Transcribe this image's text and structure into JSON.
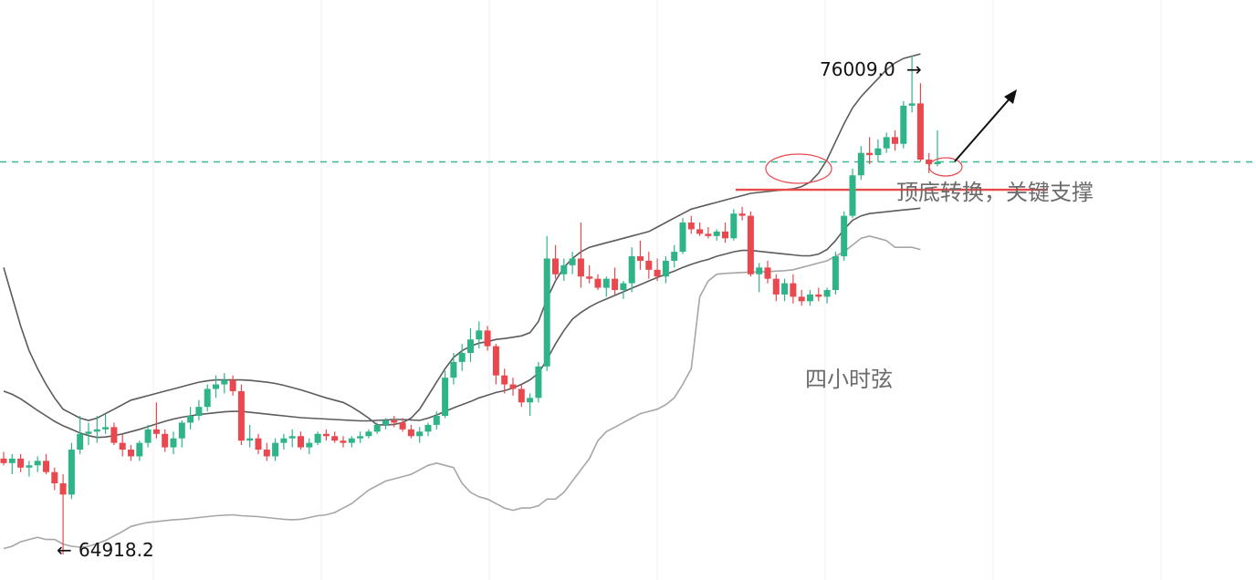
{
  "chart_data": {
    "type": "candlestick",
    "series": [
      {
        "name": "price",
        "ohlc": [
          [
            67050,
            67200,
            66900,
            66950
          ],
          [
            66950,
            67150,
            66700,
            67050
          ],
          [
            67050,
            67150,
            66750,
            66850
          ],
          [
            66850,
            67000,
            66650,
            66900
          ],
          [
            66900,
            67100,
            66750,
            67000
          ],
          [
            67000,
            67150,
            66700,
            66750
          ],
          [
            66750,
            66850,
            66350,
            66500
          ],
          [
            66500,
            66700,
            64918.2,
            66250
          ],
          [
            66250,
            67400,
            66150,
            67250
          ],
          [
            67250,
            68000,
            67150,
            67600
          ],
          [
            67600,
            67850,
            67350,
            67650
          ],
          [
            67650,
            68000,
            67400,
            67700
          ],
          [
            67700,
            68050,
            67600,
            67750
          ],
          [
            67750,
            67850,
            67350,
            67400
          ],
          [
            67400,
            67600,
            67100,
            67250
          ],
          [
            67250,
            67350,
            67000,
            67100
          ],
          [
            67100,
            67450,
            67000,
            67400
          ],
          [
            67400,
            67800,
            67300,
            67700
          ],
          [
            67700,
            68300,
            67500,
            67600
          ],
          [
            67600,
            67700,
            67200,
            67300
          ],
          [
            67300,
            67650,
            67150,
            67500
          ],
          [
            67500,
            67900,
            67300,
            67850
          ],
          [
            67850,
            68200,
            67700,
            68000
          ],
          [
            68000,
            68350,
            67900,
            68200
          ],
          [
            68200,
            68700,
            68100,
            68600
          ],
          [
            68600,
            68900,
            68400,
            68700
          ],
          [
            68700,
            68950,
            68500,
            68800
          ],
          [
            68800,
            68900,
            68450,
            68550
          ],
          [
            68550,
            68700,
            67350,
            67450
          ],
          [
            67450,
            67800,
            67300,
            67500
          ],
          [
            67500,
            67600,
            67150,
            67250
          ],
          [
            67250,
            67400,
            67000,
            67100
          ],
          [
            67100,
            67500,
            67000,
            67400
          ],
          [
            67400,
            67600,
            67250,
            67500
          ],
          [
            67500,
            67700,
            67300,
            67550
          ],
          [
            67550,
            67650,
            67250,
            67300
          ],
          [
            67300,
            67500,
            67150,
            67400
          ],
          [
            67400,
            67650,
            67350,
            67600
          ],
          [
            67600,
            67700,
            67450,
            67550
          ],
          [
            67550,
            67650,
            67400,
            67450
          ],
          [
            67450,
            67550,
            67300,
            67400
          ],
          [
            67400,
            67550,
            67300,
            67500
          ],
          [
            67500,
            67650,
            67400,
            67550
          ],
          [
            67550,
            67700,
            67500,
            67650
          ],
          [
            67650,
            67850,
            67600,
            67800
          ],
          [
            67800,
            67950,
            67700,
            67900
          ],
          [
            67900,
            68000,
            67750,
            67850
          ],
          [
            67850,
            67950,
            67650,
            67700
          ],
          [
            67700,
            67800,
            67500,
            67550
          ],
          [
            67550,
            67750,
            67400,
            67650
          ],
          [
            67650,
            67850,
            67550,
            67800
          ],
          [
            67800,
            68100,
            67700,
            68000
          ],
          [
            68000,
            69000,
            67950,
            68850
          ],
          [
            68850,
            69400,
            68700,
            69200
          ],
          [
            69200,
            69600,
            69000,
            69400
          ],
          [
            69400,
            69950,
            69200,
            69700
          ],
          [
            69700,
            70100,
            69500,
            69900
          ],
          [
            69900,
            70000,
            69450,
            69550
          ],
          [
            69550,
            69600,
            68700,
            68900
          ],
          [
            68900,
            69050,
            68500,
            68700
          ],
          [
            68700,
            68850,
            68450,
            68600
          ],
          [
            68600,
            68700,
            68200,
            68300
          ],
          [
            68300,
            68500,
            68000,
            68400
          ],
          [
            68400,
            69200,
            68300,
            69100
          ],
          [
            69100,
            72000,
            69000,
            71500
          ],
          [
            71500,
            71800,
            71050,
            71150
          ],
          [
            71150,
            71500,
            71000,
            71350
          ],
          [
            71350,
            71650,
            71150,
            71500
          ],
          [
            71500,
            72300,
            70850,
            71100
          ],
          [
            71100,
            71350,
            70950,
            71050
          ],
          [
            71050,
            71150,
            70800,
            70850
          ],
          [
            70850,
            71100,
            70650,
            71050
          ],
          [
            71050,
            71300,
            70700,
            70800
          ],
          [
            70800,
            71000,
            70600,
            70950
          ],
          [
            70950,
            71750,
            70750,
            71550
          ],
          [
            71550,
            71900,
            71250,
            71450
          ],
          [
            71450,
            71650,
            71050,
            71250
          ],
          [
            71250,
            71500,
            71000,
            71100
          ],
          [
            71100,
            71550,
            70950,
            71450
          ],
          [
            71450,
            71800,
            71300,
            71650
          ],
          [
            71650,
            72400,
            71600,
            72300
          ],
          [
            72300,
            72450,
            72050,
            72150
          ],
          [
            72150,
            72300,
            72000,
            72050
          ],
          [
            72050,
            72200,
            71950,
            72000
          ],
          [
            72000,
            72150,
            71900,
            72100
          ],
          [
            72100,
            72300,
            71850,
            71950
          ],
          [
            71950,
            72600,
            71900,
            72500
          ],
          [
            72500,
            72650,
            72350,
            72450
          ],
          [
            72450,
            72550,
            71100,
            71150
          ],
          [
            71150,
            71400,
            70750,
            71300
          ],
          [
            71300,
            71450,
            70950,
            71050
          ],
          [
            71050,
            71150,
            70550,
            70700
          ],
          [
            70700,
            71050,
            70550,
            70950
          ],
          [
            70950,
            71150,
            70500,
            70650
          ],
          [
            70650,
            70800,
            70450,
            70550
          ],
          [
            70550,
            70800,
            70450,
            70700
          ],
          [
            70700,
            70850,
            70550,
            70650
          ],
          [
            70650,
            70850,
            70500,
            70800
          ],
          [
            70800,
            71650,
            70700,
            71550
          ],
          [
            71550,
            72550,
            71450,
            72450
          ],
          [
            72450,
            73500,
            72400,
            73350
          ],
          [
            73350,
            74000,
            73250,
            73850
          ],
          [
            73850,
            74200,
            73600,
            73800
          ],
          [
            73800,
            74150,
            73650,
            73950
          ],
          [
            73950,
            74300,
            73850,
            74200
          ],
          [
            74200,
            74350,
            73900,
            74050
          ],
          [
            74050,
            75000,
            73950,
            74900
          ],
          [
            74900,
            76009.0,
            74750,
            74950
          ],
          [
            74950,
            75400,
            73650,
            73700
          ],
          [
            73700,
            73850,
            73400,
            73600
          ],
          [
            73600,
            74350,
            73550,
            73650
          ]
        ]
      },
      {
        "name": "upper-band",
        "values": [
          71300,
          70650,
          70000,
          69450,
          69050,
          68700,
          68400,
          68150,
          68050,
          67950,
          67900,
          67950,
          68050,
          68150,
          68250,
          68350,
          68400,
          68450,
          68500,
          68550,
          68600,
          68650,
          68700,
          68750,
          68780,
          68800,
          68800,
          68800,
          68800,
          68790,
          68770,
          68750,
          68720,
          68680,
          68630,
          68580,
          68520,
          68460,
          68400,
          68350,
          68300,
          68200,
          68080,
          67950,
          67800,
          67800,
          67810,
          67850,
          67950,
          68150,
          68450,
          68750,
          69050,
          69300,
          69450,
          69550,
          69620,
          69650,
          69700,
          69720,
          69750,
          69780,
          69850,
          70100,
          70600,
          71000,
          71300,
          71500,
          71650,
          71750,
          71800,
          71850,
          71900,
          71950,
          72000,
          72050,
          72100,
          72200,
          72300,
          72400,
          72500,
          72600,
          72650,
          72700,
          72750,
          72800,
          72850,
          72900,
          72950,
          72970,
          72990,
          73010,
          73030,
          73050,
          73100,
          73200,
          73400,
          73700,
          74100,
          74500,
          74850,
          75100,
          75300,
          75500,
          75700,
          75850,
          75950,
          76000,
          76050
        ]
      },
      {
        "name": "middle-band",
        "values": [
          68550,
          68480,
          68380,
          68250,
          68120,
          68000,
          67880,
          67780,
          67700,
          67620,
          67560,
          67520,
          67530,
          67560,
          67600,
          67650,
          67700,
          67760,
          67820,
          67880,
          67930,
          67970,
          68000,
          68030,
          68050,
          68070,
          68090,
          68100,
          68100,
          68080,
          68060,
          68040,
          68020,
          68000,
          67980,
          67960,
          67950,
          67940,
          67930,
          67920,
          67910,
          67900,
          67890,
          67890,
          67900,
          67910,
          67920,
          67920,
          67910,
          67900,
          67950,
          68020,
          68100,
          68180,
          68250,
          68320,
          68400,
          68460,
          68520,
          68560,
          68620,
          68700,
          68800,
          68950,
          69250,
          69600,
          69900,
          70150,
          70300,
          70420,
          70520,
          70600,
          70680,
          70760,
          70840,
          70920,
          71000,
          71080,
          71150,
          71220,
          71300,
          71370,
          71430,
          71480,
          71550,
          71600,
          71650,
          71680,
          71680,
          71660,
          71640,
          71620,
          71600,
          71580,
          71560,
          71560,
          71600,
          71700,
          71900,
          72150,
          72350,
          72450,
          72500,
          72520,
          72540,
          72560,
          72580,
          72600,
          72620
        ]
      },
      {
        "name": "lower-band",
        "values": [
          65050,
          65100,
          65200,
          65250,
          65300,
          65250,
          65250,
          65150,
          65100,
          65080,
          65100,
          65160,
          65230,
          65330,
          65430,
          65540,
          65590,
          65630,
          65650,
          65670,
          65690,
          65700,
          65720,
          65740,
          65760,
          65780,
          65790,
          65800,
          65780,
          65770,
          65760,
          65740,
          65720,
          65700,
          65690,
          65700,
          65740,
          65780,
          65800,
          65850,
          65950,
          66050,
          66200,
          66350,
          66450,
          66550,
          66600,
          66650,
          66700,
          66800,
          66900,
          66950,
          66900,
          66850,
          66500,
          66300,
          66200,
          66150,
          66050,
          65950,
          65900,
          65950,
          65950,
          66000,
          66150,
          66150,
          66300,
          66550,
          66800,
          67050,
          67450,
          67650,
          67750,
          67850,
          67950,
          68050,
          68100,
          68150,
          68250,
          68400,
          68700,
          69050,
          70650,
          71000,
          71150,
          71170,
          71180,
          71190,
          71200,
          71200,
          71210,
          71220,
          71230,
          71250,
          71300,
          71350,
          71400,
          71450,
          71550,
          71650,
          71800,
          71950,
          72000,
          71950,
          71900,
          71750,
          71750,
          71750,
          71700
        ]
      }
    ],
    "ylim": [
      64350,
      77250
    ],
    "grid": true,
    "horizontal_levels": [
      {
        "name": "dashed-level",
        "y": 73650,
        "style": "dashed",
        "color": "#3cb693"
      },
      {
        "name": "support-line",
        "y": 73030,
        "style": "solid",
        "color": "#e84a4a"
      }
    ],
    "annotations": {
      "high": "76009.0",
      "low": "64918.2",
      "support_note": "顶底转换，关键支撑",
      "band_note": "四小时弦"
    }
  },
  "colors": {
    "up": "#2fb48a",
    "down": "#e8484e",
    "band_dark": "#5b5b5b",
    "band_light": "#a6a6a6",
    "background": "#ffffff",
    "grid": "#f0f1f3"
  }
}
